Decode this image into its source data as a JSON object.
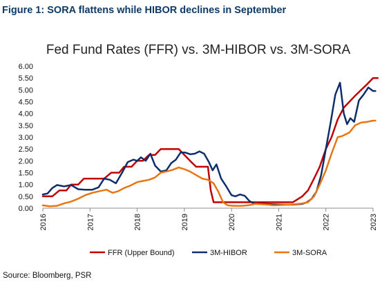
{
  "caption": "Figure 1: SORA flattens while HIBOR declines in September",
  "source": "Source: Bloomberg, PSR",
  "chart_data": {
    "type": "line",
    "title": "Fed Fund Rates (FFR) vs. 3M-HIBOR vs. 3M-SORA",
    "xlabel": "",
    "ylabel": "",
    "x_range": [
      2016,
      2023
    ],
    "ylim": [
      0,
      6
    ],
    "y_ticks": [
      "0.00",
      "0.50",
      "1.00",
      "1.50",
      "2.00",
      "2.50",
      "3.00",
      "3.50",
      "4.00",
      "4.50",
      "5.00",
      "5.50",
      "6.00"
    ],
    "x_ticks": [
      "2016",
      "2017",
      "2018",
      "2019",
      "2020",
      "2021",
      "2022",
      "2023"
    ],
    "grid": false,
    "legend_position": "bottom",
    "series": [
      {
        "name": "FFR (Upper Bound)",
        "color": "#c00000",
        "points": [
          [
            2016.0,
            0.5
          ],
          [
            2016.2,
            0.5
          ],
          [
            2016.35,
            0.75
          ],
          [
            2016.5,
            0.75
          ],
          [
            2016.6,
            1.0
          ],
          [
            2016.75,
            1.0
          ],
          [
            2016.87,
            1.25
          ],
          [
            2017.0,
            1.25
          ],
          [
            2017.3,
            1.25
          ],
          [
            2017.45,
            1.5
          ],
          [
            2017.62,
            1.5
          ],
          [
            2017.72,
            1.75
          ],
          [
            2017.88,
            1.75
          ],
          [
            2018.0,
            2.0
          ],
          [
            2018.12,
            2.0
          ],
          [
            2018.25,
            2.25
          ],
          [
            2018.38,
            2.25
          ],
          [
            2018.5,
            2.5
          ],
          [
            2018.75,
            2.5
          ],
          [
            2018.88,
            2.5
          ],
          [
            2019.0,
            2.25
          ],
          [
            2019.12,
            2.0
          ],
          [
            2019.25,
            1.75
          ],
          [
            2019.5,
            1.75
          ],
          [
            2019.56,
            0.75
          ],
          [
            2019.62,
            0.25
          ],
          [
            2020.0,
            0.25
          ],
          [
            2020.5,
            0.25
          ],
          [
            2021.0,
            0.25
          ],
          [
            2021.3,
            0.25
          ],
          [
            2021.5,
            0.5
          ],
          [
            2021.62,
            0.75
          ],
          [
            2021.75,
            1.25
          ],
          [
            2021.87,
            1.75
          ],
          [
            2022.0,
            2.5
          ],
          [
            2022.12,
            3.0
          ],
          [
            2022.25,
            3.75
          ],
          [
            2022.38,
            4.25
          ],
          [
            2022.5,
            4.5
          ],
          [
            2022.62,
            4.75
          ],
          [
            2022.75,
            5.0
          ],
          [
            2022.88,
            5.25
          ],
          [
            2023.0,
            5.5
          ],
          [
            2023.1,
            5.5
          ]
        ]
      },
      {
        "name": "3M-HIBOR",
        "color": "#0d2d6b",
        "points": [
          [
            2016.0,
            0.58
          ],
          [
            2016.1,
            0.62
          ],
          [
            2016.2,
            0.85
          ],
          [
            2016.3,
            0.98
          ],
          [
            2016.45,
            0.92
          ],
          [
            2016.6,
            0.98
          ],
          [
            2016.75,
            0.8
          ],
          [
            2016.9,
            0.78
          ],
          [
            2017.05,
            0.78
          ],
          [
            2017.18,
            0.88
          ],
          [
            2017.3,
            1.25
          ],
          [
            2017.42,
            1.2
          ],
          [
            2017.55,
            1.05
          ],
          [
            2017.68,
            1.5
          ],
          [
            2017.8,
            1.95
          ],
          [
            2017.92,
            2.05
          ],
          [
            2018.0,
            2.0
          ],
          [
            2018.08,
            2.15
          ],
          [
            2018.18,
            2.0
          ],
          [
            2018.28,
            2.3
          ],
          [
            2018.38,
            1.8
          ],
          [
            2018.5,
            1.55
          ],
          [
            2018.62,
            1.6
          ],
          [
            2018.72,
            1.9
          ],
          [
            2018.82,
            2.05
          ],
          [
            2018.92,
            2.35
          ],
          [
            2019.02,
            2.35
          ],
          [
            2019.12,
            2.28
          ],
          [
            2019.22,
            2.3
          ],
          [
            2019.32,
            2.4
          ],
          [
            2019.42,
            2.3
          ],
          [
            2019.52,
            1.95
          ],
          [
            2019.6,
            1.6
          ],
          [
            2019.68,
            1.85
          ],
          [
            2019.78,
            1.25
          ],
          [
            2019.88,
            0.95
          ],
          [
            2020.0,
            0.55
          ],
          [
            2020.08,
            0.5
          ],
          [
            2020.18,
            0.58
          ],
          [
            2020.28,
            0.52
          ],
          [
            2020.38,
            0.3
          ],
          [
            2020.5,
            0.18
          ],
          [
            2020.7,
            0.18
          ],
          [
            2020.9,
            0.16
          ],
          [
            2021.1,
            0.15
          ],
          [
            2021.3,
            0.15
          ],
          [
            2021.5,
            0.18
          ],
          [
            2021.6,
            0.25
          ],
          [
            2021.7,
            0.4
          ],
          [
            2021.8,
            0.7
          ],
          [
            2021.9,
            1.4
          ],
          [
            2022.0,
            2.5
          ],
          [
            2022.1,
            3.6
          ],
          [
            2022.2,
            4.8
          ],
          [
            2022.3,
            5.3
          ],
          [
            2022.38,
            4.0
          ],
          [
            2022.45,
            3.55
          ],
          [
            2022.52,
            3.8
          ],
          [
            2022.6,
            3.65
          ],
          [
            2022.7,
            4.55
          ],
          [
            2022.8,
            4.8
          ],
          [
            2022.9,
            5.1
          ],
          [
            2023.0,
            4.95
          ],
          [
            2023.05,
            4.95
          ]
        ]
      },
      {
        "name": "3M-SORA",
        "color": "#e87511",
        "points": [
          [
            2016.0,
            0.12
          ],
          [
            2016.15,
            0.08
          ],
          [
            2016.3,
            0.1
          ],
          [
            2016.45,
            0.2
          ],
          [
            2016.6,
            0.28
          ],
          [
            2016.75,
            0.4
          ],
          [
            2016.9,
            0.55
          ],
          [
            2017.05,
            0.65
          ],
          [
            2017.2,
            0.72
          ],
          [
            2017.35,
            0.78
          ],
          [
            2017.48,
            0.65
          ],
          [
            2017.6,
            0.72
          ],
          [
            2017.72,
            0.85
          ],
          [
            2017.85,
            0.95
          ],
          [
            2018.0,
            1.1
          ],
          [
            2018.12,
            1.15
          ],
          [
            2018.25,
            1.2
          ],
          [
            2018.38,
            1.3
          ],
          [
            2018.5,
            1.5
          ],
          [
            2018.62,
            1.55
          ],
          [
            2018.75,
            1.62
          ],
          [
            2018.88,
            1.72
          ],
          [
            2019.0,
            1.65
          ],
          [
            2019.12,
            1.55
          ],
          [
            2019.25,
            1.4
          ],
          [
            2019.38,
            1.25
          ],
          [
            2019.5,
            1.2
          ],
          [
            2019.62,
            1.05
          ],
          [
            2019.72,
            0.7
          ],
          [
            2019.82,
            0.25
          ],
          [
            2019.92,
            0.12
          ],
          [
            2020.05,
            0.1
          ],
          [
            2020.2,
            0.1
          ],
          [
            2020.35,
            0.12
          ],
          [
            2020.5,
            0.18
          ],
          [
            2020.7,
            0.16
          ],
          [
            2020.9,
            0.12
          ],
          [
            2021.1,
            0.14
          ],
          [
            2021.3,
            0.16
          ],
          [
            2021.5,
            0.2
          ],
          [
            2021.62,
            0.25
          ],
          [
            2021.75,
            0.5
          ],
          [
            2021.87,
            1.0
          ],
          [
            2022.0,
            1.6
          ],
          [
            2022.12,
            2.3
          ],
          [
            2022.25,
            3.0
          ],
          [
            2022.35,
            3.05
          ],
          [
            2022.5,
            3.2
          ],
          [
            2022.62,
            3.5
          ],
          [
            2022.75,
            3.62
          ],
          [
            2022.88,
            3.65
          ],
          [
            2023.0,
            3.7
          ],
          [
            2023.05,
            3.7
          ]
        ]
      }
    ]
  }
}
